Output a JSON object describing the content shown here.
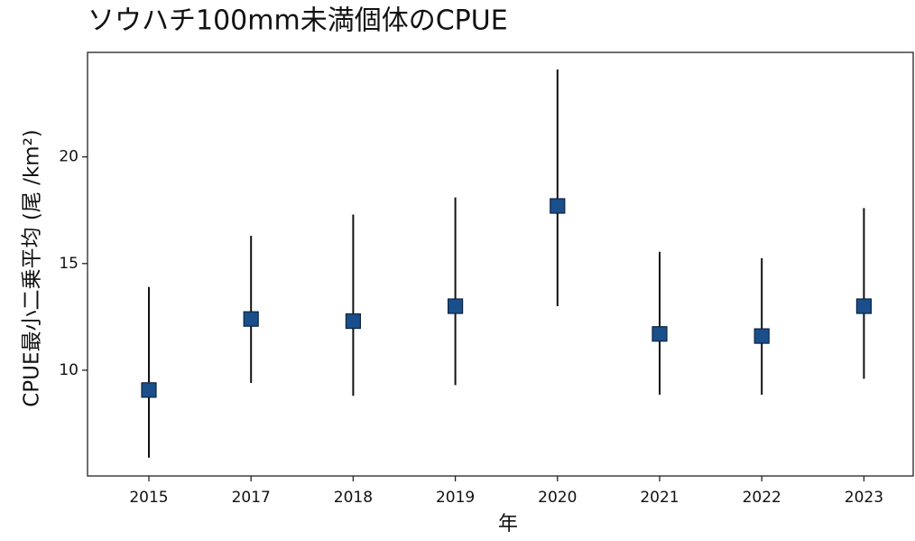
{
  "chart_data": {
    "type": "errorbar",
    "title": "ソウハチ100mm未満個体のCPUE",
    "x_label": "年",
    "y_label": "CPUE最小二乗平均 (尾 /km²)",
    "categories": [
      "2015",
      "2017",
      "2018",
      "2019",
      "2020",
      "2021",
      "2022",
      "2023"
    ],
    "values": [
      9.07,
      12.4,
      12.3,
      13.0,
      17.7,
      11.7,
      11.6,
      13.0
    ],
    "lower": [
      5.9,
      9.4,
      8.8,
      9.3,
      13.0,
      8.85,
      8.85,
      9.6
    ],
    "upper": [
      13.9,
      16.3,
      17.3,
      18.1,
      24.1,
      15.55,
      15.25,
      17.6
    ],
    "color": "#1a4f8c",
    "ylim": [
      5.04,
      24.9
    ],
    "yticks": [
      10,
      15,
      20
    ]
  }
}
